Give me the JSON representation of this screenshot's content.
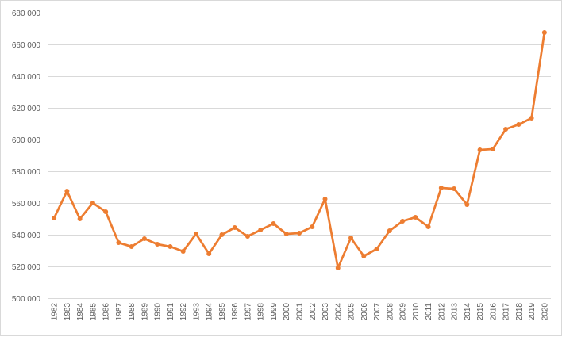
{
  "chart_data": {
    "type": "line",
    "title": "",
    "xlabel": "",
    "ylabel": "",
    "x": [
      "1982",
      "1983",
      "1984",
      "1985",
      "1986",
      "1987",
      "1988",
      "1989",
      "1990",
      "1991",
      "1992",
      "1993",
      "1994",
      "1995",
      "1996",
      "1997",
      "1998",
      "1999",
      "2000",
      "2001",
      "2002",
      "2003",
      "2004",
      "2005",
      "2006",
      "2007",
      "2008",
      "2009",
      "2010",
      "2011",
      "2012",
      "2013",
      "2014",
      "2015",
      "2016",
      "2017",
      "2018",
      "2019",
      "2020"
    ],
    "series": [
      {
        "values": [
          550500,
          567500,
          550000,
          560000,
          554500,
          535000,
          532500,
          537500,
          534000,
          532500,
          529500,
          540500,
          528000,
          540000,
          544500,
          539000,
          543000,
          547000,
          540500,
          541000,
          545000,
          562500,
          519000,
          538000,
          526500,
          531000,
          542500,
          548500,
          551000,
          545000,
          569500,
          569000,
          559000,
          593500,
          594000,
          606500,
          609500,
          613500,
          667500
        ],
        "color": "#ED7D31"
      }
    ],
    "ylim": [
      500000,
      680000
    ],
    "yticks": [
      "500 000",
      "520 000",
      "540 000",
      "560 000",
      "580 000",
      "600 000",
      "620 000",
      "640 000",
      "660 000",
      "680 000"
    ],
    "grid": true,
    "gridColor": "#d9d9d9",
    "legend": "none"
  }
}
